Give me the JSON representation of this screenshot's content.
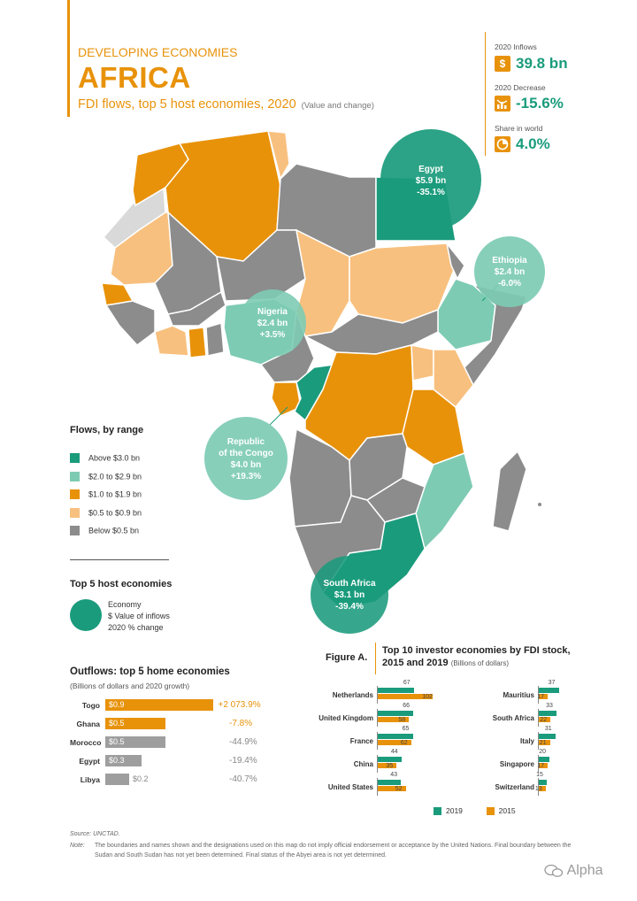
{
  "header": {
    "region": "DEVELOPING ECONOMIES",
    "title": "AFRICA",
    "subtitle": "FDI flows, top 5 host economies, 2020",
    "subtitle_note": "(Value and change)"
  },
  "stats": [
    {
      "label": "2020 Inflows",
      "icon": "dollar-icon",
      "value": "39.8 bn"
    },
    {
      "label": "2020 Decrease",
      "icon": "decrease-chart-icon",
      "value": "-15.6%"
    },
    {
      "label": "Share in world",
      "icon": "pie-share-icon",
      "value": "4.0%"
    }
  ],
  "colors": {
    "above_3": "#1a9b7c",
    "range_2_3": "#7dcbb3",
    "range_1_2": "#e8920a",
    "range_05_1": "#f8c07e",
    "below_05": "#8c8c8c",
    "no_data": "#d9d9d9"
  },
  "map_bubbles": [
    {
      "name": "Egypt",
      "value": "$5.9 bn",
      "change": "-35.1%"
    },
    {
      "name": "Ethiopia",
      "value": "$2.4 bn",
      "change": "-6.0%"
    },
    {
      "name": "Nigeria",
      "value": "$2.4 bn",
      "change": "+3.5%"
    },
    {
      "name_line1": "Republic",
      "name_line2": "of the Congo",
      "value": "$4.0 bn",
      "change": "+19.3%"
    },
    {
      "name": "South Africa",
      "value": "$3.1 bn",
      "change": "-39.4%"
    }
  ],
  "legend": {
    "title": "Flows, by range",
    "items": [
      {
        "label": "Above $3.0 bn",
        "color": "#1a9b7c"
      },
      {
        "label": "$2.0 to $2.9 bn",
        "color": "#7dcbb3"
      },
      {
        "label": "$1.0 to $1.9 bn",
        "color": "#e8920a"
      },
      {
        "label": "$0.5 to $0.9 bn",
        "color": "#f8c07e"
      },
      {
        "label": "Below $0.5 bn",
        "color": "#8c8c8c"
      }
    ]
  },
  "top5": {
    "title": "Top 5 host economies",
    "lines": [
      "Economy",
      "$ Value of inflows",
      "2020 % change"
    ]
  },
  "outflows": {
    "title": "Outflows: top 5 home economies",
    "subtitle": "(Billions of dollars and 2020 growth)"
  },
  "figure_a": {
    "label": "Figure A.",
    "title_line1": "Top 10 investor economies by FDI stock,",
    "title_line2": "2015 and 2019",
    "unit": "(Billions of dollars)"
  },
  "chart_data": [
    {
      "type": "bar",
      "title": "Outflows: top 5 home economies",
      "subtitle": "(Billions of dollars and 2020 growth)",
      "categories": [
        "Togo",
        "Ghana",
        "Morocco",
        "Egypt",
        "Libya"
      ],
      "values": [
        0.9,
        0.5,
        0.5,
        0.3,
        0.2
      ],
      "value_labels": [
        "$0.9",
        "$0.5",
        "$0.5",
        "$0.3",
        "$0.2"
      ],
      "growth_labels": [
        "+2 073.9%",
        "-7.8%",
        "-44.9%",
        "-19.4%",
        "-40.7%"
      ],
      "bar_colors": [
        "#e8920a",
        "#e8920a",
        "#9e9e9e",
        "#9e9e9e",
        "#9e9e9e"
      ],
      "growth_colors": [
        "#e8920a",
        "#e8920a",
        "#888888",
        "#888888",
        "#888888"
      ]
    },
    {
      "type": "bar",
      "title": "Top 10 investor economies by FDI stock, 2015 and 2019",
      "unit": "(Billions of dollars)",
      "categories": [
        "Netherlands",
        "United Kingdom",
        "France",
        "China",
        "United States",
        "Mauritius",
        "South Africa",
        "Italy",
        "Singapore",
        "Switzerland"
      ],
      "series": [
        {
          "name": "2019",
          "color": "#1a9b7c",
          "values": [
            67,
            66,
            65,
            44,
            43,
            37,
            33,
            31,
            20,
            15
          ]
        },
        {
          "name": "2015",
          "color": "#e8920a",
          "values": [
            102,
            58,
            62,
            35,
            52,
            17,
            22,
            21,
            17,
            13
          ]
        }
      ],
      "legend": "bottom"
    }
  ],
  "footer": {
    "source": "Source: UNCTAD.",
    "note_label": "Note:",
    "note": "The boundaries and names shown and the designations used on this map do not imply official endorsement or acceptance by the United Nations. Final boundary between the Sudan and South Sudan has not yet been determined. Final status of the Abyei area is not yet determined.",
    "watermark": "Alpha"
  }
}
